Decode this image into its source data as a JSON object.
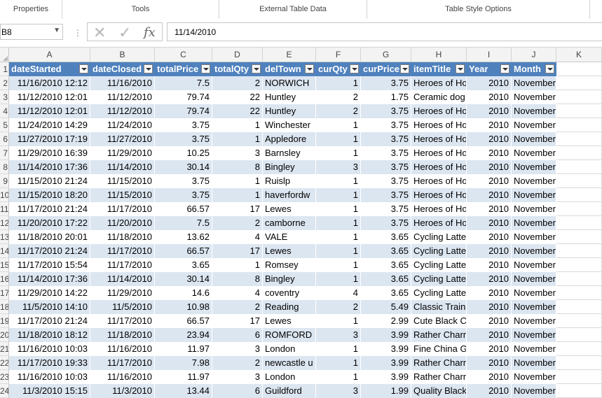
{
  "ribbon": {
    "groups": [
      "Properties",
      "Tools",
      "External Table Data",
      "Table Style Options"
    ]
  },
  "formula_bar": {
    "name_box": "B8",
    "value": "11/14/2010",
    "cancel_icon": "cancel-icon",
    "enter_icon": "enter-icon",
    "fx_label": "fx"
  },
  "columns": [
    "A",
    "B",
    "C",
    "D",
    "E",
    "F",
    "G",
    "H",
    "I",
    "J",
    "K"
  ],
  "table": {
    "headers": [
      "dateStarted",
      "dateClosed",
      "totalPrice",
      "totalQty",
      "delTown",
      "curQty",
      "curPrice",
      "itemTitle",
      "Year",
      "Month"
    ],
    "rows": [
      {
        "n": "2",
        "cells": [
          "11/16/2010 12:12",
          "11/16/2010",
          "7.5",
          "2",
          "NORWICH",
          "1",
          "3.75",
          "Heroes of Ho",
          "2010",
          "November"
        ]
      },
      {
        "n": "3",
        "cells": [
          "11/12/2010 12:01",
          "11/12/2010",
          "79.74",
          "22",
          "Huntley",
          "2",
          "1.75",
          "Ceramic dog",
          "2010",
          "November"
        ]
      },
      {
        "n": "4",
        "cells": [
          "11/12/2010 12:01",
          "11/12/2010",
          "79.74",
          "22",
          "Huntley",
          "2",
          "3.75",
          "Heroes of Ho",
          "2010",
          "November"
        ]
      },
      {
        "n": "5",
        "cells": [
          "11/24/2010 14:29",
          "11/24/2010",
          "3.75",
          "1",
          "Winchester",
          "1",
          "3.75",
          "Heroes of Ho",
          "2010",
          "November"
        ]
      },
      {
        "n": "6",
        "cells": [
          "11/27/2010 17:19",
          "11/27/2010",
          "3.75",
          "1",
          "Appledore",
          "1",
          "3.75",
          "Heroes of Ho",
          "2010",
          "November"
        ]
      },
      {
        "n": "7",
        "cells": [
          "11/29/2010 16:39",
          "11/29/2010",
          "10.25",
          "3",
          "Barnsley",
          "1",
          "3.75",
          "Heroes of Ho",
          "2010",
          "November"
        ]
      },
      {
        "n": "8",
        "cells": [
          "11/14/2010 17:36",
          "11/14/2010",
          "30.14",
          "8",
          "Bingley",
          "3",
          "3.75",
          "Heroes of Ho",
          "2010",
          "November"
        ]
      },
      {
        "n": "9",
        "cells": [
          "11/15/2010 21:24",
          "11/15/2010",
          "3.75",
          "1",
          "Ruislp",
          "1",
          "3.75",
          "Heroes of Ho",
          "2010",
          "November"
        ]
      },
      {
        "n": "10",
        "cells": [
          "11/15/2010 18:20",
          "11/15/2010",
          "3.75",
          "1",
          "haverfordw",
          "1",
          "3.75",
          "Heroes of Ho",
          "2010",
          "November"
        ]
      },
      {
        "n": "11",
        "cells": [
          "11/17/2010 21:24",
          "11/17/2010",
          "66.57",
          "17",
          "Lewes",
          "1",
          "3.75",
          "Heroes of Ho",
          "2010",
          "November"
        ]
      },
      {
        "n": "12",
        "cells": [
          "11/20/2010 17:22",
          "11/20/2010",
          "7.5",
          "2",
          "camborne",
          "1",
          "3.75",
          "Heroes of Ho",
          "2010",
          "November"
        ]
      },
      {
        "n": "13",
        "cells": [
          "11/18/2010 20:01",
          "11/18/2010",
          "13.62",
          "4",
          "VALE",
          "1",
          "3.65",
          "Cycling Latte",
          "2010",
          "November"
        ]
      },
      {
        "n": "14",
        "cells": [
          "11/17/2010 21:24",
          "11/17/2010",
          "66.57",
          "17",
          "Lewes",
          "1",
          "3.65",
          "Cycling Latte",
          "2010",
          "November"
        ]
      },
      {
        "n": "15",
        "cells": [
          "11/17/2010 15:54",
          "11/17/2010",
          "3.65",
          "1",
          "Romsey",
          "1",
          "3.65",
          "Cycling Latte",
          "2010",
          "November"
        ]
      },
      {
        "n": "16",
        "cells": [
          "11/14/2010 17:36",
          "11/14/2010",
          "30.14",
          "8",
          "Bingley",
          "1",
          "3.65",
          "Cycling Latte",
          "2010",
          "November"
        ]
      },
      {
        "n": "17",
        "cells": [
          "11/29/2010 14:22",
          "11/29/2010",
          "14.6",
          "4",
          "coventry",
          "4",
          "3.65",
          "Cycling Latte",
          "2010",
          "November"
        ]
      },
      {
        "n": "18",
        "cells": [
          "11/5/2010 14:10",
          "11/5/2010",
          "10.98",
          "2",
          "Reading",
          "2",
          "5.49",
          "Classic Train",
          "2010",
          "November"
        ]
      },
      {
        "n": "19",
        "cells": [
          "11/17/2010 21:24",
          "11/17/2010",
          "66.57",
          "17",
          "Lewes",
          "1",
          "2.99",
          "Cute Black C",
          "2010",
          "November"
        ]
      },
      {
        "n": "20",
        "cells": [
          "11/18/2010 18:12",
          "11/18/2010",
          "23.94",
          "6",
          "ROMFORD",
          "3",
          "3.99",
          "Rather Charr",
          "2010",
          "November"
        ]
      },
      {
        "n": "21",
        "cells": [
          "11/16/2010 10:03",
          "11/16/2010",
          "11.97",
          "3",
          "London",
          "1",
          "3.99",
          "Fine China G",
          "2010",
          "November"
        ]
      },
      {
        "n": "22",
        "cells": [
          "11/17/2010 19:33",
          "11/17/2010",
          "7.98",
          "2",
          "newcastle u",
          "1",
          "3.99",
          "Rather Charr",
          "2010",
          "November"
        ]
      },
      {
        "n": "23",
        "cells": [
          "11/16/2010 10:03",
          "11/16/2010",
          "11.97",
          "3",
          "London",
          "1",
          "3.99",
          "Rather Charr",
          "2010",
          "November"
        ]
      },
      {
        "n": "24",
        "cells": [
          "11/3/2010 15:15",
          "11/3/2010",
          "13.44",
          "6",
          "Guildford",
          "3",
          "1.99",
          "Quality Black",
          "2010",
          "November"
        ]
      }
    ]
  }
}
